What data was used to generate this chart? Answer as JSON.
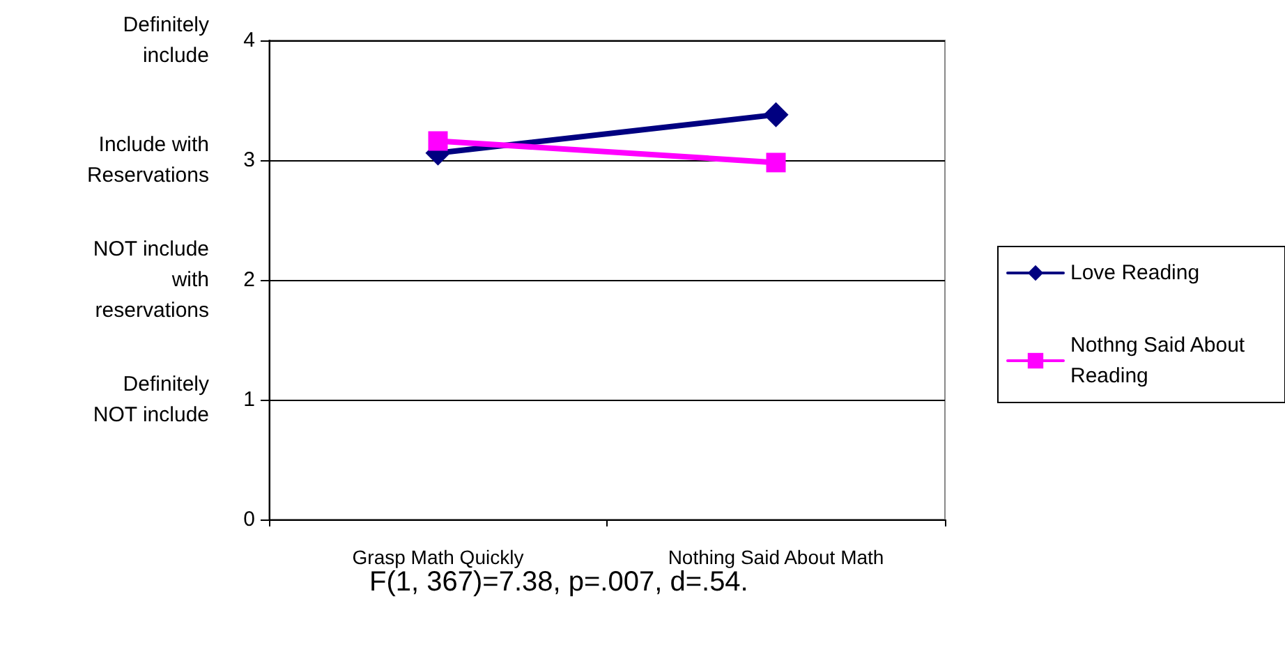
{
  "chart_data": {
    "type": "line",
    "categories": [
      "Grasp Math Quickly",
      "Nothing Said About Math"
    ],
    "series": [
      {
        "name": "Love Reading",
        "color": "#000080",
        "values": [
          3.06,
          3.38
        ],
        "marker": "diamond"
      },
      {
        "name": "Nothng Said About Reading",
        "color": "#ff00ff",
        "values": [
          3.16,
          2.98
        ],
        "marker": "square"
      }
    ],
    "ylim": [
      0,
      4
    ],
    "yticks": [
      0,
      1,
      2,
      3,
      4
    ],
    "grid": "y",
    "legend": "right",
    "line_style": "solid",
    "annotations": [
      "Definitely\ninclude",
      "Include with\nReservations",
      "NOT include\nwith\nreservations",
      "Definitely\nNOT include",
      "F(1, 367)=7.38, p=.007, d=.54."
    ]
  }
}
